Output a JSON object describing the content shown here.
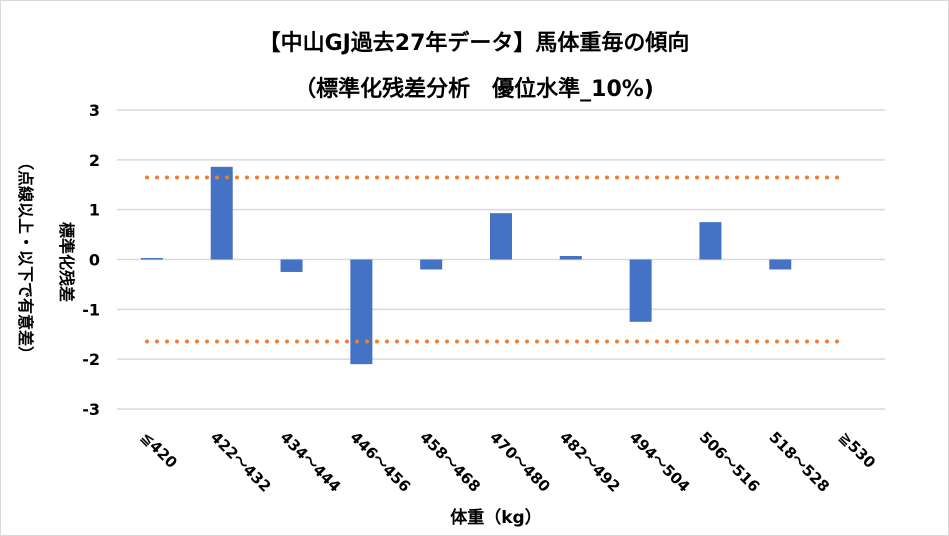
{
  "chart_data": {
    "type": "bar",
    "title": "【中山GJ過去27年データ】馬体重毎の傾向",
    "subtitle": "（標準化残差分析　優位水準_10%)",
    "xlabel": "体重（kg）",
    "ylabel": "標準化残差",
    "ylabel2": "（点線以上・以下で有意差）",
    "categories": [
      "≦420",
      "422～432",
      "434～444",
      "446～456",
      "458～468",
      "470～480",
      "482～492",
      "494～504",
      "506～516",
      "518～528",
      "≧530"
    ],
    "values": [
      0.03,
      1.86,
      -0.25,
      -2.1,
      -0.2,
      0.93,
      0.07,
      -1.25,
      0.75,
      -0.2,
      0
    ],
    "ylim": [
      -3,
      3
    ],
    "yticks": [
      3,
      2,
      1,
      0,
      -1,
      -2,
      -3
    ],
    "thresholds": [
      1.645,
      -1.645
    ],
    "grid": true,
    "colors": {
      "bar": "#4472c4",
      "threshold": "#ed7d31",
      "grid": "#d9d9d9"
    }
  }
}
